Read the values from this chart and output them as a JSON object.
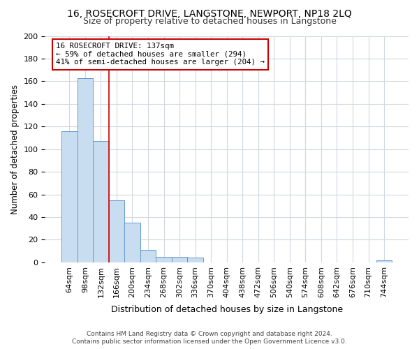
{
  "title": "16, ROSECROFT DRIVE, LANGSTONE, NEWPORT, NP18 2LQ",
  "subtitle": "Size of property relative to detached houses in Langstone",
  "xlabel": "Distribution of detached houses by size in Langstone",
  "ylabel": "Number of detached properties",
  "categories": [
    "64sqm",
    "98sqm",
    "132sqm",
    "166sqm",
    "200sqm",
    "234sqm",
    "268sqm",
    "302sqm",
    "336sqm",
    "370sqm",
    "404sqm",
    "438sqm",
    "472sqm",
    "506sqm",
    "540sqm",
    "574sqm",
    "608sqm",
    "642sqm",
    "676sqm",
    "710sqm",
    "744sqm"
  ],
  "values": [
    116,
    163,
    107,
    55,
    35,
    11,
    5,
    5,
    4,
    0,
    0,
    0,
    0,
    0,
    0,
    0,
    0,
    0,
    0,
    0,
    2
  ],
  "bar_color": "#c8ddf0",
  "bar_edge_color": "#6699cc",
  "redline_x": 2.5,
  "annotation_line1": "16 ROSECROFT DRIVE: 137sqm",
  "annotation_line2": "← 59% of detached houses are smaller (294)",
  "annotation_line3": "41% of semi-detached houses are larger (204) →",
  "annotation_box_color": "#ffffff",
  "annotation_box_edge": "#cc0000",
  "redline_color": "#cc0000",
  "ylim": [
    0,
    200
  ],
  "yticks": [
    0,
    20,
    40,
    60,
    80,
    100,
    120,
    140,
    160,
    180,
    200
  ],
  "title_fontsize": 10,
  "subtitle_fontsize": 9,
  "xlabel_fontsize": 9,
  "ylabel_fontsize": 8.5,
  "tick_fontsize": 8,
  "footer_text": "Contains HM Land Registry data © Crown copyright and database right 2024.\nContains public sector information licensed under the Open Government Licence v3.0.",
  "background_color": "#ffffff",
  "plot_bg_color": "#ffffff",
  "grid_color": "#d0d8e0"
}
